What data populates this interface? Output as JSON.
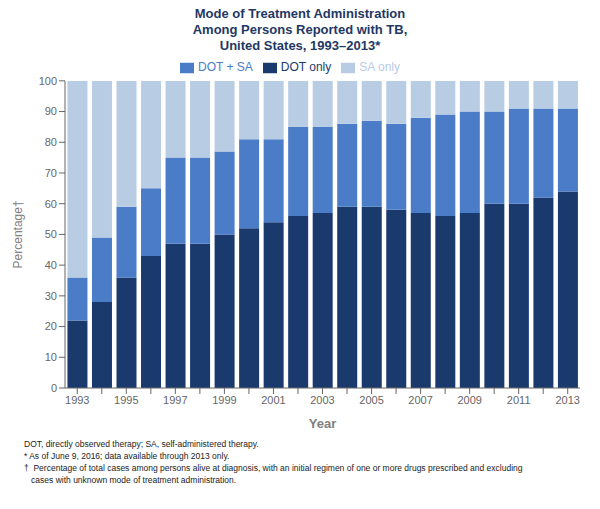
{
  "chart_data": {
    "type": "bar",
    "title": "Mode of Treatment Administration\nAmong Persons Reported with TB,\nUnited States, 1993–2013*",
    "x_label": "Year",
    "y_label": "Percentage†",
    "categories": [
      "1993",
      null,
      "1995",
      null,
      "1997",
      null,
      "1999",
      null,
      "2001",
      null,
      "2003",
      null,
      "2005",
      null,
      "2007",
      null,
      "2009",
      null,
      "2011",
      null,
      "2013"
    ],
    "series": [
      {
        "name": "DOT only",
        "color": "#1a3a6e",
        "values": [
          22,
          28,
          36,
          43,
          47,
          47,
          50,
          52,
          54,
          56,
          57,
          59,
          59,
          58,
          57,
          56,
          57,
          60,
          60,
          62,
          64
        ]
      },
      {
        "name": "DOT + SA",
        "color": "#4a7cc7",
        "values": [
          14,
          21,
          23,
          22,
          28,
          28,
          27,
          29,
          27,
          29,
          28,
          27,
          28,
          28,
          31,
          33,
          33,
          30,
          31,
          29,
          27
        ]
      },
      {
        "name": "SA only",
        "color": "#b8cce4",
        "values": [
          64,
          51,
          41,
          35,
          25,
          25,
          23,
          19,
          19,
          15,
          15,
          14,
          13,
          14,
          12,
          11,
          10,
          10,
          9,
          9,
          9
        ]
      }
    ],
    "stacked": true,
    "legend": "top",
    "grid": false,
    "ylim": [
      0,
      100
    ],
    "yticks": [
      0,
      10,
      20,
      30,
      40,
      50,
      60,
      70,
      80,
      90,
      100
    ],
    "annotations": [
      "DOT, directly observed therapy; SA, self-administered therapy.",
      "* As of June 9, 2016; data available through 2013 only.",
      "†  Percentage of total cases among persons alive at diagnosis, with an initial regimen of one or more drugs prescribed and excluding",
      "   cases with unknown mode of treatment administration."
    ]
  }
}
